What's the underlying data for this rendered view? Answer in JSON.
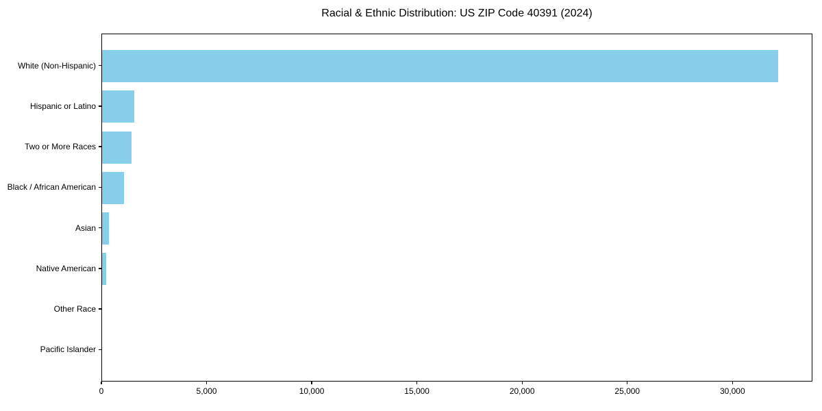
{
  "chart_data": {
    "type": "bar",
    "orientation": "horizontal",
    "title": "Racial & Ethnic Distribution: US ZIP Code 40391 (2024)",
    "categories": [
      "White (Non-Hispanic)",
      "Hispanic or Latino",
      "Two or More Races",
      "Black / African American",
      "Asian",
      "Native American",
      "Other Race",
      "Pacific Islander"
    ],
    "values": [
      32200,
      1520,
      1400,
      1030,
      335,
      180,
      0,
      0
    ],
    "bar_color": "#87CEEB",
    "text_color": "#000000",
    "xlabel": "",
    "ylabel": "",
    "xlim": [
      0,
      33800
    ],
    "xticks": {
      "values": [
        0,
        5000,
        10000,
        15000,
        20000,
        25000,
        30000
      ],
      "labels": [
        "0",
        "5,000",
        "10,000",
        "15,000",
        "20,000",
        "25,000",
        "30,000"
      ]
    },
    "grid": false,
    "legend": null
  }
}
